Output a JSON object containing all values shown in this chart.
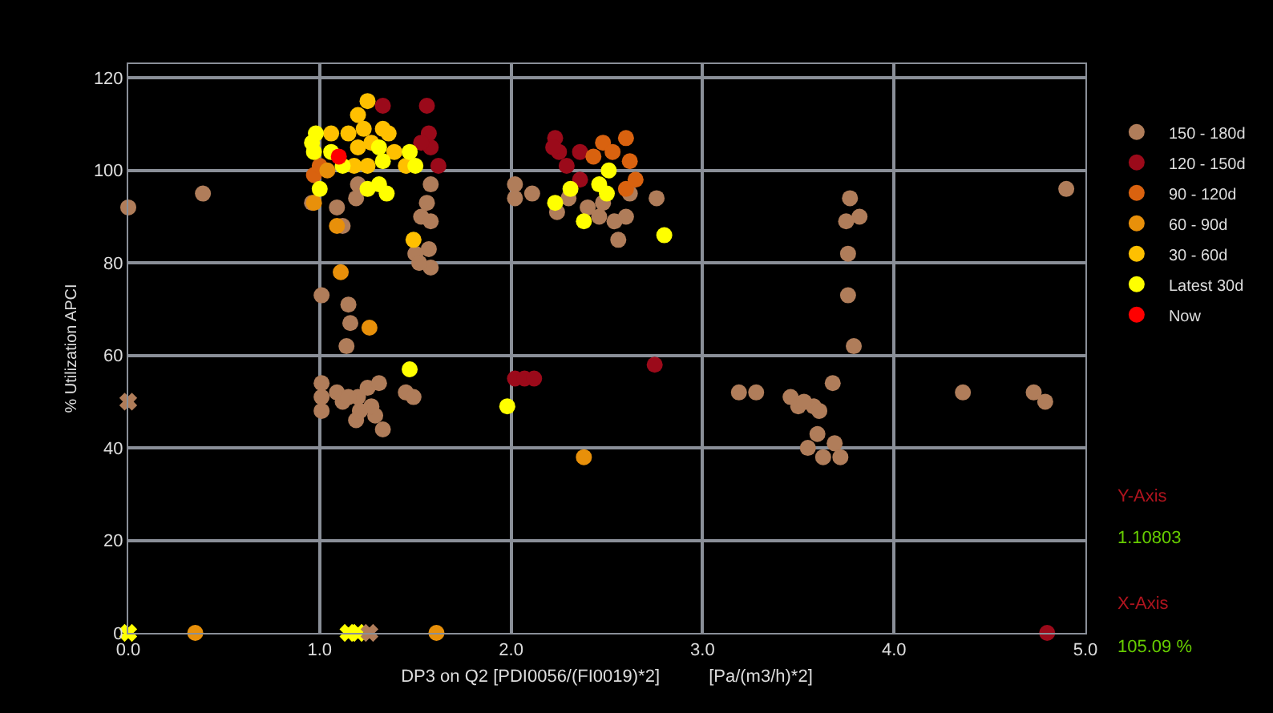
{
  "chart_data": {
    "type": "scatter",
    "xlabel": "DP3 on Q2 [PDI0056/(FI0019)*2]          [Pa/(m3/h)*2]",
    "ylabel": "% Utilization APCI",
    "xlim": [
      0,
      5
    ],
    "ylim": [
      0,
      123
    ],
    "xticks": [
      {
        "value": 0,
        "label": "0.0"
      },
      {
        "value": 1,
        "label": "1.0"
      },
      {
        "value": 2,
        "label": "2.0"
      },
      {
        "value": 3,
        "label": "3.0"
      },
      {
        "value": 4,
        "label": "4.0"
      },
      {
        "value": 5,
        "label": "5.0"
      }
    ],
    "yticks": [
      0,
      20,
      40,
      60,
      80,
      100,
      120
    ],
    "grid": true,
    "legend": "right",
    "marker": "circle",
    "annotations": [
      "Y-Axis",
      "1.10803",
      "X-Axis",
      "105.09 %"
    ],
    "series": [
      {
        "name": "150 - 180d",
        "color": "#b07d5a",
        "x": [
          0,
          0.39,
          0.96,
          1.01,
          1.15,
          1.16,
          1.14,
          1.12,
          1.09,
          1.2,
          1.19,
          1.58,
          1.56,
          1.53,
          1.58,
          1.57,
          1.5,
          1.58,
          1.52,
          1.01,
          1.01,
          1.01,
          1.12,
          1.2,
          1.25,
          1.31,
          1.19,
          1.33,
          1.45,
          1.49,
          1.29,
          1.09,
          1.21,
          1.27,
          1.15,
          2.02,
          2.02,
          2.11,
          2.24,
          2.48,
          2.6,
          2.56,
          2.76,
          2.4,
          2.62,
          2.3,
          2.46,
          2.54,
          3.77,
          3.82,
          3.75,
          3.76,
          3.76,
          3.79,
          3.68,
          3.19,
          3.28,
          3.46,
          3.5,
          3.58,
          3.61,
          3.53,
          3.6,
          3.55,
          3.63,
          3.69,
          3.72,
          4.36,
          4.73,
          4.79,
          4.9
        ],
        "values": [
          92,
          95,
          93,
          73,
          71,
          67,
          62,
          88,
          92,
          97,
          94,
          97,
          93,
          90,
          89,
          83,
          82,
          79,
          80,
          54,
          48,
          51,
          50,
          51,
          53,
          54,
          46,
          44,
          52,
          51,
          47,
          52,
          48,
          49,
          51,
          97,
          94,
          95,
          91,
          93,
          90,
          85,
          94,
          92,
          95,
          94,
          90,
          89,
          94,
          90,
          89,
          82,
          73,
          62,
          54,
          52,
          52,
          51,
          49,
          49,
          48,
          50,
          43,
          40,
          38,
          41,
          38,
          52,
          52,
          50,
          96
        ]
      },
      {
        "name": "120 - 150d",
        "color": "#9b0a1a",
        "x": [
          1.56,
          1.33,
          1.57,
          1.58,
          1.62,
          1.53,
          2.23,
          2.25,
          2.29,
          2.36,
          2.36,
          2.22,
          2.02,
          2.07,
          2.12,
          2.75,
          4.8
        ],
        "values": [
          114,
          114,
          108,
          105,
          101,
          106,
          107,
          104,
          101,
          104,
          98,
          105,
          55,
          55,
          55,
          58,
          0
        ]
      },
      {
        "name": "90 - 120d",
        "color": "#d9620f",
        "x": [
          2.48,
          2.6,
          2.62,
          2.6,
          2.53,
          2.43,
          2.65,
          0.97,
          1.0
        ],
        "values": [
          106,
          107,
          102,
          96,
          104,
          103,
          98,
          99,
          101
        ]
      },
      {
        "name": "60 - 90d",
        "color": "#e8900a",
        "x": [
          0.97,
          1.09,
          1.11,
          1.26,
          0.35,
          1.61,
          2.38,
          1.04
        ],
        "values": [
          93,
          88,
          78,
          66,
          0,
          0,
          38,
          100
        ]
      },
      {
        "name": "30 - 60d",
        "color": "#ffc000",
        "x": [
          1.25,
          1.2,
          1.15,
          1.36,
          1.2,
          1.27,
          1.39,
          1.06,
          1.25,
          1.18,
          1.45,
          1.33,
          1.23,
          1.49
        ],
        "values": [
          115,
          112,
          108,
          108,
          105,
          106,
          104,
          108,
          101,
          101,
          101,
          109,
          109,
          85
        ]
      },
      {
        "name": "Latest 30d",
        "color": "#ffff00",
        "x": [
          0.98,
          0.97,
          1.06,
          1.0,
          1.12,
          1.31,
          1.33,
          1.31,
          1.35,
          1.25,
          1.47,
          1.5,
          0.96,
          1.47,
          1.98,
          2.23,
          2.31,
          2.38,
          2.8,
          2.5,
          2.51,
          2.46
        ],
        "values": [
          108,
          104,
          104,
          96,
          101,
          105,
          102,
          97,
          95,
          96,
          104,
          101,
          106,
          57,
          49,
          93,
          96,
          89,
          86,
          95,
          100,
          97
        ]
      },
      {
        "name": "Now",
        "color": "#ff0000",
        "x": [
          1.1
        ],
        "values": [
          103
        ]
      },
      {
        "color": "#ffff00",
        "marker": "cross",
        "x": [
          0,
          1.15,
          1.2
        ],
        "values": [
          0,
          0,
          0
        ]
      },
      {
        "color": "#b07d5a",
        "marker": "cross",
        "x": [
          0,
          1.26
        ],
        "values": [
          50,
          0
        ]
      }
    ]
  }
}
